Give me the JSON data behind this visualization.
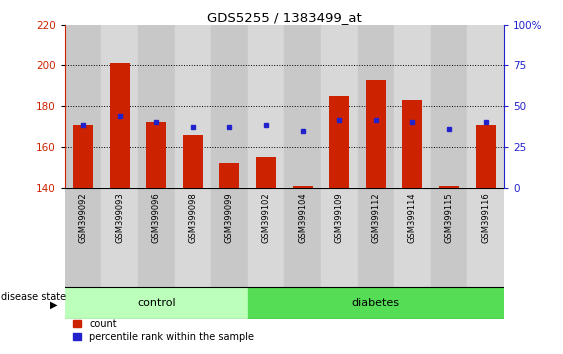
{
  "title": "GDS5255 / 1383499_at",
  "samples": [
    "GSM399092",
    "GSM399093",
    "GSM399096",
    "GSM399098",
    "GSM399099",
    "GSM399102",
    "GSM399104",
    "GSM399109",
    "GSM399112",
    "GSM399114",
    "GSM399115",
    "GSM399116"
  ],
  "red_values": [
    171,
    201,
    172,
    166,
    152,
    155,
    141,
    185,
    193,
    183,
    141,
    171
  ],
  "blue_values": [
    171,
    175,
    172,
    170,
    170,
    171,
    168,
    173,
    173,
    172,
    169,
    172
  ],
  "ylim_left": [
    140,
    220
  ],
  "ylim_right": [
    0,
    100
  ],
  "yticks_left": [
    140,
    160,
    180,
    200,
    220
  ],
  "yticks_right": [
    0,
    25,
    50,
    75,
    100
  ],
  "ytick_right_labels": [
    "0",
    "25",
    "50",
    "75",
    "100%"
  ],
  "control_samples": 5,
  "diabetes_samples": 7,
  "control_label": "control",
  "diabetes_label": "diabetes",
  "disease_state_label": "disease state",
  "legend_count": "count",
  "legend_percentile": "percentile rank within the sample",
  "bar_color": "#cc2200",
  "dot_color": "#2222cc",
  "col_color_even": "#c8c8c8",
  "col_color_odd": "#d8d8d8",
  "control_bg": "#bbffbb",
  "diabetes_bg": "#55dd55",
  "bar_bottom": 140,
  "bar_width": 0.55,
  "grid_yticks": [
    160,
    180,
    200
  ]
}
